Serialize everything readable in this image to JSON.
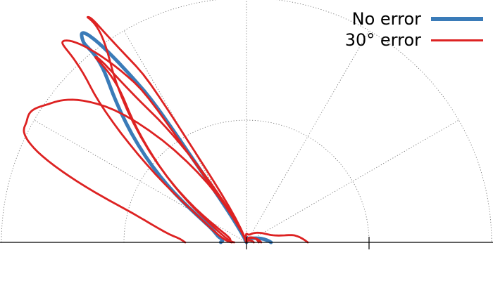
{
  "chart_data": {
    "type": "line",
    "subtype": "polar-half",
    "radial_range": [
      0,
      2
    ],
    "radial_gridlines": [
      1,
      2
    ],
    "angular_gridlines_deg": [
      0,
      30,
      60,
      90,
      120,
      150,
      180
    ],
    "grid": true,
    "legend_position": "top-right",
    "colors": {
      "no_error": "#3a7bb8",
      "error_30": "#dd2222",
      "grid": "#777777",
      "axis": "#000000"
    },
    "series": [
      {
        "name": "No error",
        "style": "thick",
        "points": [
          [
            0,
            0.2
          ],
          [
            25,
            0.08
          ],
          [
            55,
            0.04
          ],
          [
            90,
            0.04
          ],
          [
            118,
            0.1
          ],
          [
            124,
            1.5
          ],
          [
            127,
            2.1
          ],
          [
            129,
            2.12
          ],
          [
            131,
            1.7
          ],
          [
            150,
            0.5
          ],
          [
            170,
            0.22
          ],
          [
            180,
            0.21
          ]
        ]
      },
      {
        "name": "30° error",
        "style": "thin",
        "lobes": [
          [
            [
              0,
              0.5
            ],
            [
              8,
              0.4
            ],
            [
              18,
              0.2
            ],
            [
              60,
              0.08
            ],
            [
              90,
              0.07
            ],
            [
              115,
              0.1
            ],
            [
              136,
              1.6
            ],
            [
              146,
              2.0
            ],
            [
              151,
              2.05
            ],
            [
              156,
              1.9
            ],
            [
              165,
              1.0
            ],
            [
              175,
              0.6
            ],
            [
              180,
              0.5
            ]
          ],
          [
            [
              0,
              0.12
            ],
            [
              60,
              0.04
            ],
            [
              115,
              0.1
            ],
            [
              125,
              1.6
            ],
            [
              132,
              2.22
            ],
            [
              135,
              1.8
            ],
            [
              150,
              0.5
            ],
            [
              180,
              0.12
            ]
          ],
          [
            [
              0,
              0.06
            ],
            [
              50,
              0.02
            ],
            [
              110,
              0.05
            ],
            [
              122,
              1.7
            ],
            [
              125,
              2.25
            ],
            [
              127,
              1.85
            ],
            [
              150,
              0.35
            ],
            [
              180,
              0.12
            ]
          ],
          [
            [
              0,
              0.1
            ],
            [
              90,
              0.03
            ],
            [
              115,
              0.12
            ],
            [
              126,
              1.3
            ],
            [
              129,
              1.95
            ],
            [
              131,
              1.5
            ],
            [
              150,
              0.4
            ],
            [
              180,
              0.1
            ]
          ]
        ]
      }
    ],
    "legend": [
      "No error",
      "30° error"
    ]
  }
}
